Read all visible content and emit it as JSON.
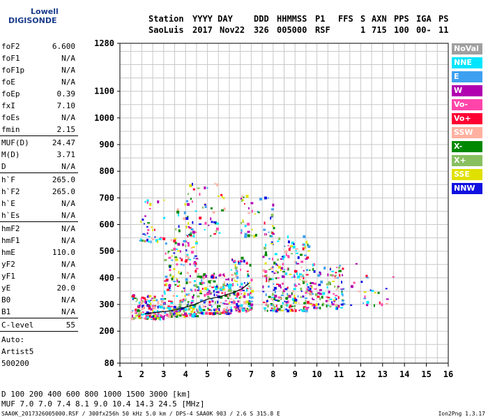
{
  "logo": {
    "line1": "Lowell",
    "line2": "DIGISONDE"
  },
  "header": {
    "labels": {
      "station": "Station",
      "yyyy_day": "YYYY DAY",
      "ddd": "DDD",
      "hhmmss": "HHMMSS",
      "p1": "P1",
      "ffs": "FFS",
      "s": "S",
      "axn": "AXN",
      "pps": "PPS",
      "iga": "IGA",
      "ps": "PS"
    },
    "values": {
      "station": "SaoLuis",
      "year": "2017",
      "day": "Nov22",
      "ddd": "326",
      "hhmmss": "005000",
      "p1": "RSF",
      "ffs": "",
      "s": "1",
      "axn": "715",
      "pps": "100",
      "iga": "00-",
      "ps": "11"
    }
  },
  "params": [
    {
      "name": "foF2",
      "value": "6.600"
    },
    {
      "name": "foF1",
      "value": "N/A"
    },
    {
      "name": "foF1p",
      "value": "N/A"
    },
    {
      "name": "foE",
      "value": "N/A"
    },
    {
      "name": "foEp",
      "value": "0.39"
    },
    {
      "name": "fxI",
      "value": "7.10"
    },
    {
      "name": "foEs",
      "value": "N/A"
    },
    {
      "name": "fmin",
      "value": "2.15"
    },
    {
      "sep": true
    },
    {
      "name": "MUF(D)",
      "value": "24.47"
    },
    {
      "name": "M(D)",
      "value": "3.71"
    },
    {
      "name": "D",
      "value": "N/A"
    },
    {
      "sep": true
    },
    {
      "name": "h`F",
      "value": "265.0"
    },
    {
      "name": "h`F2",
      "value": "265.0"
    },
    {
      "name": "h`E",
      "value": "N/A"
    },
    {
      "name": "h`Es",
      "value": "N/A"
    },
    {
      "sep": true
    },
    {
      "name": "hmF2",
      "value": "N/A"
    },
    {
      "name": "hmF1",
      "value": "N/A"
    },
    {
      "name": "hmE",
      "value": "110.0"
    },
    {
      "name": "yF2",
      "value": "N/A"
    },
    {
      "name": "yF1",
      "value": "N/A"
    },
    {
      "name": "yE",
      "value": "20.0"
    },
    {
      "name": "B0",
      "value": "N/A"
    },
    {
      "name": "B1",
      "value": "N/A"
    },
    {
      "sep": true
    },
    {
      "name": "C-level",
      "value": "55"
    },
    {
      "sep": true
    }
  ],
  "auto": {
    "label": "Auto:",
    "artist": "Artist5",
    "code": "500200"
  },
  "legend": [
    {
      "label": "NoVal",
      "color": "#a0a0a0"
    },
    {
      "label": "NNE",
      "color": "#00e5ff"
    },
    {
      "label": "E",
      "color": "#3ea0f0"
    },
    {
      "label": "W",
      "color": "#b000b0"
    },
    {
      "label": "Vo-",
      "color": "#ff44aa"
    },
    {
      "label": "Vo+",
      "color": "#ff0033"
    },
    {
      "label": "SSW",
      "color": "#ffb0a0"
    },
    {
      "label": "X-",
      "color": "#008800"
    },
    {
      "label": "X+",
      "color": "#88c060"
    },
    {
      "label": "SSE",
      "color": "#e0e000"
    },
    {
      "label": "NNW",
      "color": "#1010e0"
    }
  ],
  "bottom_table": {
    "d_label": "D",
    "d_values": [
      "100",
      "200",
      "400",
      "600",
      "800",
      "1000",
      "1500",
      "3000"
    ],
    "d_unit": "[km]",
    "muf_label": "MUF",
    "muf_values": [
      "7.0",
      "7.0",
      "7.4",
      "8.1",
      "9.0",
      "10.4",
      "14.3",
      "24.5"
    ],
    "muf_unit": "[MHz]"
  },
  "footer": {
    "left": "SAA0K_2017326005000.RSF / 300fx256h 50 kHz 5.0 km / DPS-4 SAA0K 903 / 2.6 S 315.8 E",
    "right": "Ion2Png 1.3.17"
  },
  "chart_data": {
    "type": "scatter",
    "title": "",
    "xlabel": "",
    "ylabel": "",
    "xlim": [
      1,
      16
    ],
    "ylim": [
      80,
      1280
    ],
    "x_ticks": [
      1,
      2,
      3,
      4,
      5,
      6,
      7,
      8,
      9,
      10,
      11,
      12,
      13,
      14,
      15,
      16
    ],
    "y_ticks": [
      80,
      200,
      300,
      400,
      500,
      600,
      700,
      800,
      900,
      1000,
      1100,
      1280
    ],
    "grid": true,
    "legend_position": "right",
    "trace": {
      "name": "",
      "x": [
        2.15,
        2.6,
        3.2,
        3.8,
        4.4,
        5.0,
        5.6,
        6.2,
        6.6,
        6.9
      ],
      "y": [
        265,
        270,
        275,
        285,
        300,
        320,
        330,
        345,
        360,
        380
      ]
    },
    "echo_clusters": [
      {
        "x_range": [
          1.5,
          3.0
        ],
        "y_range": [
          250,
          340
        ],
        "density": 160
      },
      {
        "x_range": [
          3.0,
          4.5
        ],
        "y_range": [
          260,
          560
        ],
        "density": 220
      },
      {
        "x_range": [
          4.5,
          6.0
        ],
        "y_range": [
          270,
          420
        ],
        "density": 180
      },
      {
        "x_range": [
          6.0,
          7.0
        ],
        "y_range": [
          280,
          480
        ],
        "density": 140
      },
      {
        "x_range": [
          7.5,
          9.6
        ],
        "y_range": [
          280,
          560
        ],
        "density": 260
      },
      {
        "x_range": [
          9.6,
          11.2
        ],
        "y_range": [
          290,
          460
        ],
        "density": 120
      },
      {
        "x_range": [
          1.8,
          3.0
        ],
        "y_range": [
          540,
          700
        ],
        "density": 40
      },
      {
        "x_range": [
          3.5,
          5.8
        ],
        "y_range": [
          560,
          760
        ],
        "density": 70
      },
      {
        "x_range": [
          6.5,
          8.0
        ],
        "y_range": [
          560,
          720
        ],
        "density": 50
      },
      {
        "x_range": [
          11.5,
          13.5
        ],
        "y_range": [
          300,
          460
        ],
        "density": 25
      }
    ]
  }
}
